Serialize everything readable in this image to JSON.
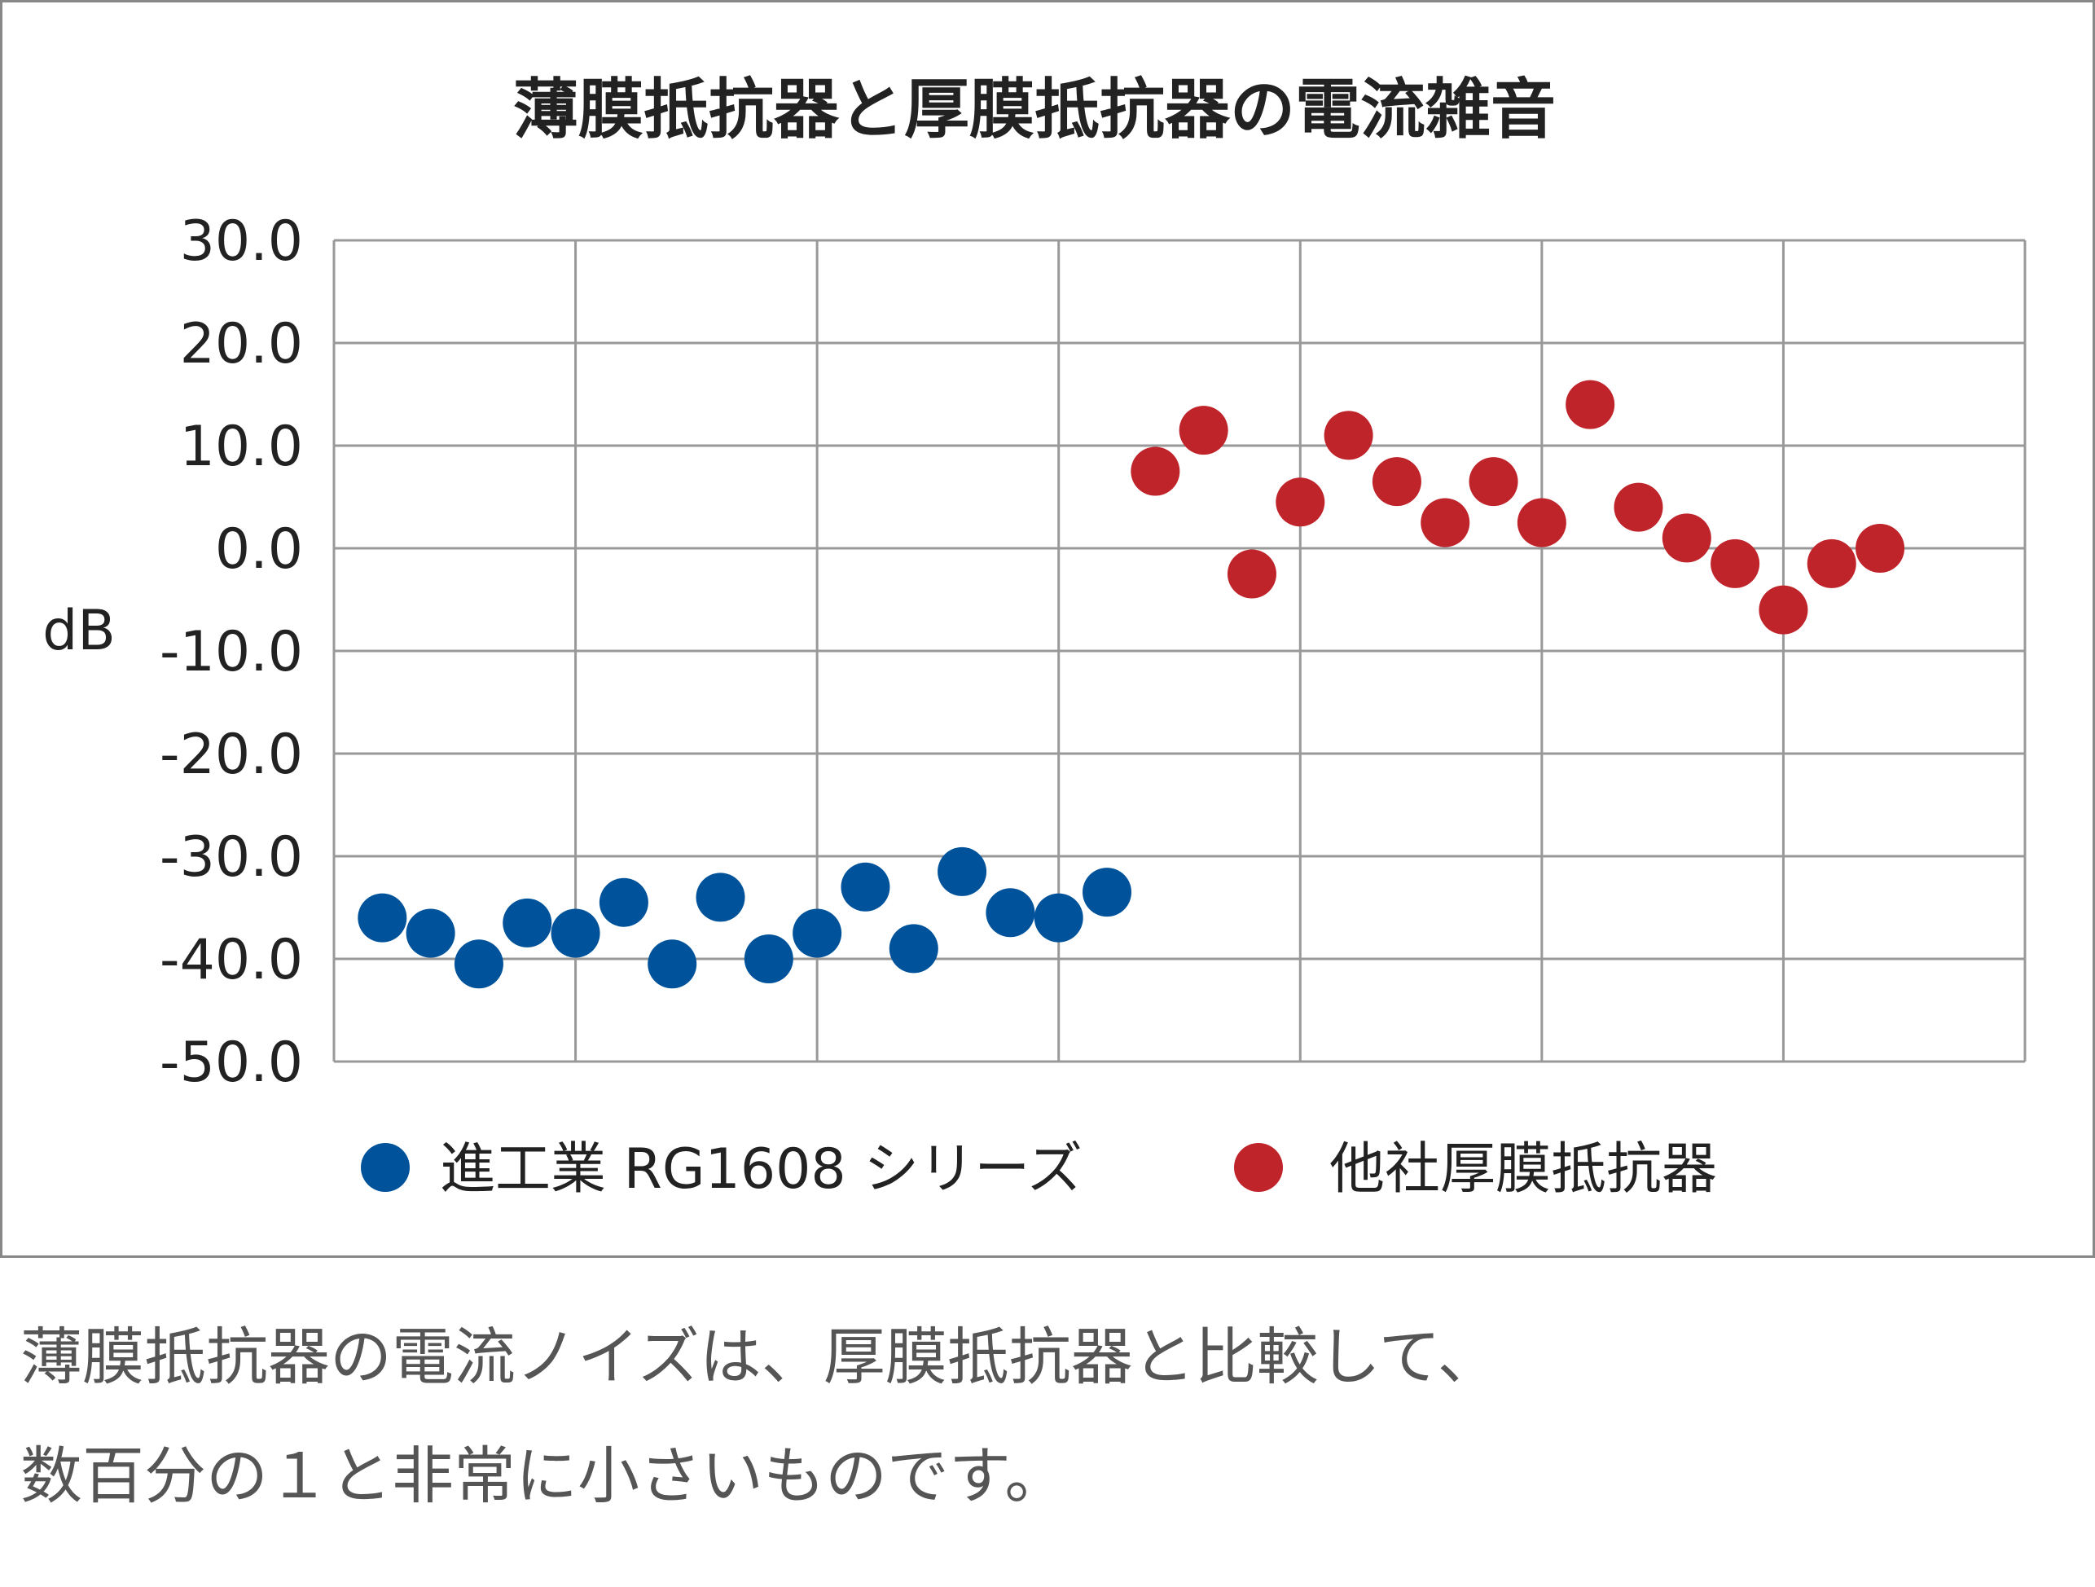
{
  "chart_data": {
    "type": "scatter",
    "title": "薄膜抵抗器と厚膜抵抗器の電流雑音",
    "ylabel": "dB",
    "xlabel": "",
    "ylim": [
      -50,
      30
    ],
    "yticks": [
      "30.0",
      "20.0",
      "10.0",
      "0.0",
      "-10.0",
      "-20.0",
      "-30.0",
      "-40.0",
      "-50.0"
    ],
    "ytick_values": [
      30,
      20,
      10,
      0,
      -10,
      -20,
      -30,
      -40,
      -50
    ],
    "xlim": [
      0,
      35
    ],
    "x_gridlines": 7,
    "grid": true,
    "legend_position": "bottom",
    "series": [
      {
        "name": "進工業 RG1608 シリーズ",
        "color": "#00539b",
        "x": [
          1,
          2,
          3,
          4,
          5,
          6,
          7,
          8,
          9,
          10,
          11,
          12,
          13,
          14,
          15,
          16
        ],
        "y": [
          -36.0,
          -37.5,
          -40.5,
          -36.5,
          -37.5,
          -34.5,
          -40.5,
          -34.0,
          -40.0,
          -37.5,
          -33.0,
          -39.0,
          -31.5,
          -35.5,
          -36.0,
          -33.5
        ]
      },
      {
        "name": "他社厚膜抵抗器",
        "color": "#c0242b",
        "x": [
          17,
          18,
          19,
          20,
          21,
          22,
          23,
          24,
          25,
          26,
          27,
          28,
          29,
          30,
          31,
          32
        ],
        "y": [
          7.5,
          11.5,
          -2.5,
          4.5,
          11.0,
          6.5,
          2.5,
          6.5,
          2.5,
          14.0,
          4.0,
          1.0,
          -1.5,
          -6.0,
          -1.5,
          0.0
        ]
      }
    ]
  },
  "caption": {
    "line1": "薄膜抵抗器の電流ノイズは、厚膜抵抗器と比較して、",
    "line2": "数百分の１と非常に小さいものです。"
  }
}
